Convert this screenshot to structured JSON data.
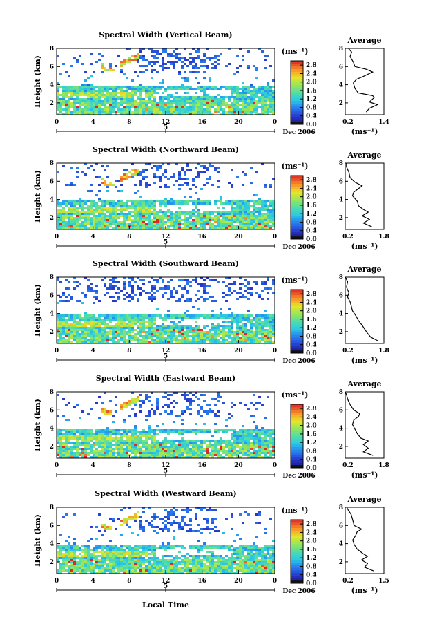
{
  "chart_data": {
    "type": "heatmap",
    "xlabel": "Local Time",
    "ylabel": "Height (km)",
    "x_ticks": [
      "0",
      "4",
      "8",
      "12",
      "16",
      "20",
      "0"
    ],
    "y_ticks": [
      "2",
      "4",
      "6",
      "8"
    ],
    "date_label": "Dec 2006",
    "date_marker": "5",
    "colorbar_unit": "(ms⁻¹)",
    "colorbar_ticks": [
      "0.0",
      "0.4",
      "0.8",
      "1.2",
      "1.6",
      "2.0",
      "2.4",
      "2.8"
    ],
    "colorbar_range": [
      0,
      3.0
    ],
    "profile_title": "Average",
    "profile_unit": "(ms⁻¹)",
    "panels": [
      {
        "title": "Spectral Width (Vertical Beam)",
        "profile_xticks": [
          "0.2",
          "1.4"
        ],
        "profile_xrange": [
          0.2,
          1.4
        ],
        "profile": [
          [
            0.85,
            1.0
          ],
          [
            0.95,
            1.4
          ],
          [
            1.2,
            1.8
          ],
          [
            0.95,
            2.1
          ],
          [
            1.1,
            2.6
          ],
          [
            1.05,
            2.8
          ],
          [
            0.6,
            3.1
          ],
          [
            0.5,
            3.6
          ],
          [
            0.45,
            4.2
          ],
          [
            0.55,
            4.6
          ],
          [
            0.75,
            4.9
          ],
          [
            1.05,
            5.4
          ],
          [
            0.85,
            5.7
          ],
          [
            0.5,
            6.0
          ],
          [
            0.45,
            6.5
          ],
          [
            0.35,
            7.1
          ],
          [
            0.4,
            7.6
          ],
          [
            0.3,
            8.0
          ]
        ]
      },
      {
        "title": "Spectral Width (Northward Beam)",
        "profile_xticks": [
          "0.2",
          "1.8"
        ],
        "profile_xrange": [
          0.2,
          1.8
        ],
        "profile": [
          [
            1.3,
            1.0
          ],
          [
            0.95,
            1.4
          ],
          [
            1.2,
            1.8
          ],
          [
            0.9,
            2.2
          ],
          [
            1.15,
            2.6
          ],
          [
            0.95,
            2.9
          ],
          [
            0.75,
            3.3
          ],
          [
            0.7,
            3.8
          ],
          [
            0.5,
            4.4
          ],
          [
            0.55,
            4.8
          ],
          [
            0.7,
            5.1
          ],
          [
            0.9,
            5.5
          ],
          [
            0.6,
            5.9
          ],
          [
            0.4,
            6.4
          ],
          [
            0.35,
            7.0
          ],
          [
            0.25,
            7.6
          ],
          [
            0.25,
            8.0
          ]
        ]
      },
      {
        "title": "Spectral Width (Southward Beam)",
        "profile_xticks": [
          "0.2",
          "1.8"
        ],
        "profile_xrange": [
          0.2,
          1.8
        ],
        "profile": [
          [
            1.55,
            1.0
          ],
          [
            1.25,
            1.4
          ],
          [
            1.1,
            1.9
          ],
          [
            1.0,
            2.3
          ],
          [
            0.9,
            2.7
          ],
          [
            0.75,
            3.2
          ],
          [
            0.65,
            3.7
          ],
          [
            0.5,
            4.3
          ],
          [
            0.45,
            4.8
          ],
          [
            0.4,
            5.3
          ],
          [
            0.3,
            5.8
          ],
          [
            0.35,
            6.3
          ],
          [
            0.25,
            6.9
          ],
          [
            0.3,
            7.5
          ],
          [
            0.2,
            8.0
          ]
        ]
      },
      {
        "title": "Spectral Width (Eastward Beam)",
        "profile_xticks": [
          "0.2",
          "1.8"
        ],
        "profile_xrange": [
          0.2,
          1.8
        ],
        "profile": [
          [
            1.35,
            1.0
          ],
          [
            0.95,
            1.4
          ],
          [
            1.15,
            1.8
          ],
          [
            0.95,
            2.2
          ],
          [
            1.15,
            2.6
          ],
          [
            0.85,
            2.9
          ],
          [
            0.7,
            3.4
          ],
          [
            0.6,
            3.9
          ],
          [
            0.5,
            4.4
          ],
          [
            0.55,
            4.9
          ],
          [
            0.75,
            5.3
          ],
          [
            0.8,
            5.6
          ],
          [
            0.55,
            6.0
          ],
          [
            0.4,
            6.6
          ],
          [
            0.3,
            7.2
          ],
          [
            0.25,
            7.7
          ],
          [
            0.2,
            8.0
          ]
        ]
      },
      {
        "title": "Spectral Width (Westward Beam)",
        "profile_xticks": [
          "0.2",
          "1.5"
        ],
        "profile_xrange": [
          0.2,
          1.5
        ],
        "profile": [
          [
            1.15,
            1.0
          ],
          [
            0.85,
            1.4
          ],
          [
            0.95,
            1.8
          ],
          [
            0.75,
            2.2
          ],
          [
            0.95,
            2.6
          ],
          [
            0.8,
            2.9
          ],
          [
            0.6,
            3.4
          ],
          [
            0.5,
            3.9
          ],
          [
            0.45,
            4.4
          ],
          [
            0.55,
            4.9
          ],
          [
            0.6,
            5.3
          ],
          [
            0.75,
            5.6
          ],
          [
            0.5,
            6.0
          ],
          [
            0.45,
            6.6
          ],
          [
            0.4,
            7.2
          ],
          [
            0.3,
            7.7
          ],
          [
            0.25,
            8.0
          ]
        ]
      }
    ]
  }
}
